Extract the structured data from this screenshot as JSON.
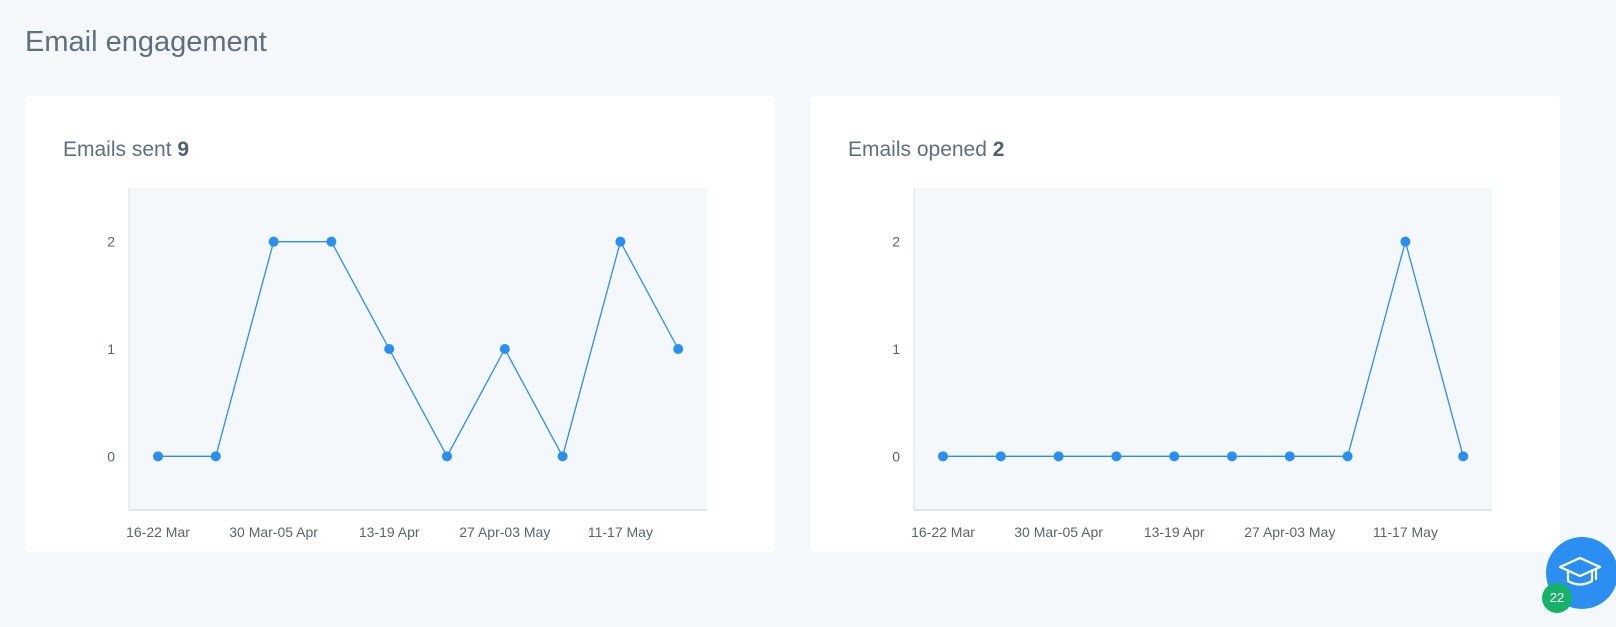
{
  "page": {
    "title": "Email engagement"
  },
  "cards": [
    {
      "title_prefix": "Emails sent",
      "title_value": "9"
    },
    {
      "title_prefix": "Emails opened",
      "title_value": "2"
    }
  ],
  "chart_data": [
    {
      "type": "line",
      "x_tick_labels": [
        "16-22 Mar",
        "30 Mar-05 Apr",
        "13-19 Apr",
        "27 Apr-03 May",
        "11-17 May"
      ],
      "y_tick_labels": [
        "0",
        "1",
        "2"
      ],
      "series": [
        {
          "values": [
            0,
            0,
            2,
            2,
            1,
            0,
            1,
            0,
            2,
            1
          ]
        }
      ],
      "ylim": [
        -0.5,
        2.5
      ],
      "color": "#2b8ff2"
    },
    {
      "type": "line",
      "x_tick_labels": [
        "16-22 Mar",
        "30 Mar-05 Apr",
        "13-19 Apr",
        "27 Apr-03 May",
        "11-17 May"
      ],
      "y_tick_labels": [
        "0",
        "1",
        "2"
      ],
      "series": [
        {
          "values": [
            0,
            0,
            0,
            0,
            0,
            0,
            0,
            0,
            2,
            0
          ]
        }
      ],
      "ylim": [
        -0.5,
        2.5
      ],
      "color": "#2b8ff2"
    }
  ],
  "help": {
    "badge_count": "22",
    "icon": "graduation-cap-icon"
  }
}
